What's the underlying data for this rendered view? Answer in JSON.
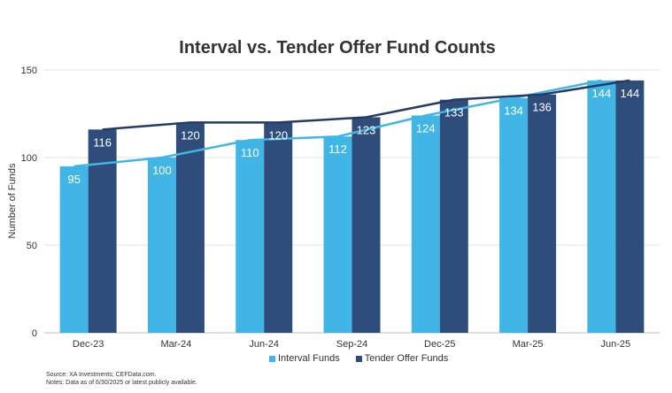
{
  "chart_data": {
    "type": "bar",
    "title": "Interval vs. Tender Offer Fund Counts",
    "ylabel": "Number of Funds",
    "xlabel": "",
    "ylim": [
      0,
      150
    ],
    "yticks": [
      0,
      50,
      100,
      150
    ],
    "grid": true,
    "legend_position": "bottom",
    "categories": [
      "Dec-23",
      "Mar-24",
      "Jun-24",
      "Sep-24",
      "Dec-25",
      "Mar-25",
      "Jun-25"
    ],
    "series": [
      {
        "name": "Interval Funds",
        "values": [
          95,
          100,
          110,
          112,
          124,
          134,
          144
        ],
        "color": "#41B6E6",
        "line_color": "#41B6E6"
      },
      {
        "name": "Tender Offer Funds",
        "values": [
          116,
          120,
          120,
          123,
          133,
          136,
          144
        ],
        "color": "#2E4D7B",
        "line_color": "#243B66"
      }
    ],
    "overlay": "line connecting bar tops for each series"
  },
  "notes": {
    "source": "Source: XA Investments; CEFData.com.",
    "note": "Notes: Data as of 6/30/2025 or latest publicly available."
  }
}
